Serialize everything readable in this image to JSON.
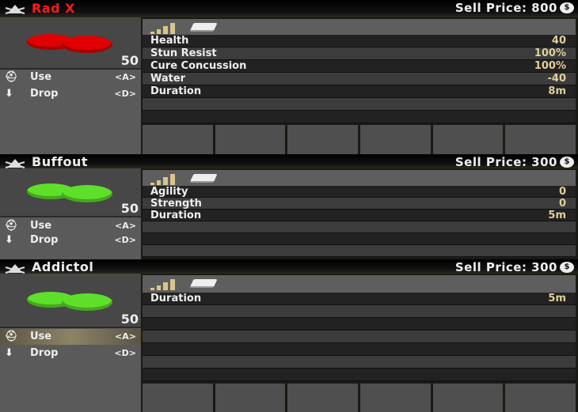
{
  "items": [
    {
      "name": "Rad X",
      "name_color": "#ff1a1a",
      "sell_price": "Sell Price: 800",
      "count": "50",
      "pill_color": "#e00000",
      "actions": [
        {
          "icon": "medkit-icon",
          "label": "Use",
          "key": "<A>",
          "selected": false
        },
        {
          "icon": "arrow-down-icon",
          "label": "Drop",
          "key": "<D>",
          "selected": false
        }
      ],
      "stats": [
        {
          "label": "Health",
          "value": "40"
        },
        {
          "label": "Stun Resist",
          "value": "100%"
        },
        {
          "label": "Cure Concussion",
          "value": "100%"
        },
        {
          "label": "Water",
          "value": "-40"
        },
        {
          "label": "Duration",
          "value": "8m"
        }
      ]
    },
    {
      "name": "Buffout",
      "name_color": "#eeeeee",
      "sell_price": "Sell Price: 300",
      "count": "50",
      "pill_color": "#5ee02a",
      "actions": [
        {
          "icon": "medkit-icon",
          "label": "Use",
          "key": "<A>",
          "selected": false
        },
        {
          "icon": "arrow-down-icon",
          "label": "Drop",
          "key": "<D>",
          "selected": false
        }
      ],
      "stats": [
        {
          "label": "Agility",
          "value": "0"
        },
        {
          "label": "Strength",
          "value": "0"
        },
        {
          "label": "Duration",
          "value": "5m"
        }
      ]
    },
    {
      "name": "Addictol",
      "name_color": "#eeeeee",
      "sell_price": "Sell Price: 300",
      "count": "50",
      "pill_color": "#5ee02a",
      "actions": [
        {
          "icon": "medkit-icon",
          "label": "Use",
          "key": "<A>",
          "selected": true
        },
        {
          "icon": "arrow-down-icon",
          "label": "Drop",
          "key": "<D>",
          "selected": false
        }
      ],
      "stats": [
        {
          "label": "Duration",
          "value": "5m"
        }
      ]
    }
  ],
  "coin_symbol": "$"
}
